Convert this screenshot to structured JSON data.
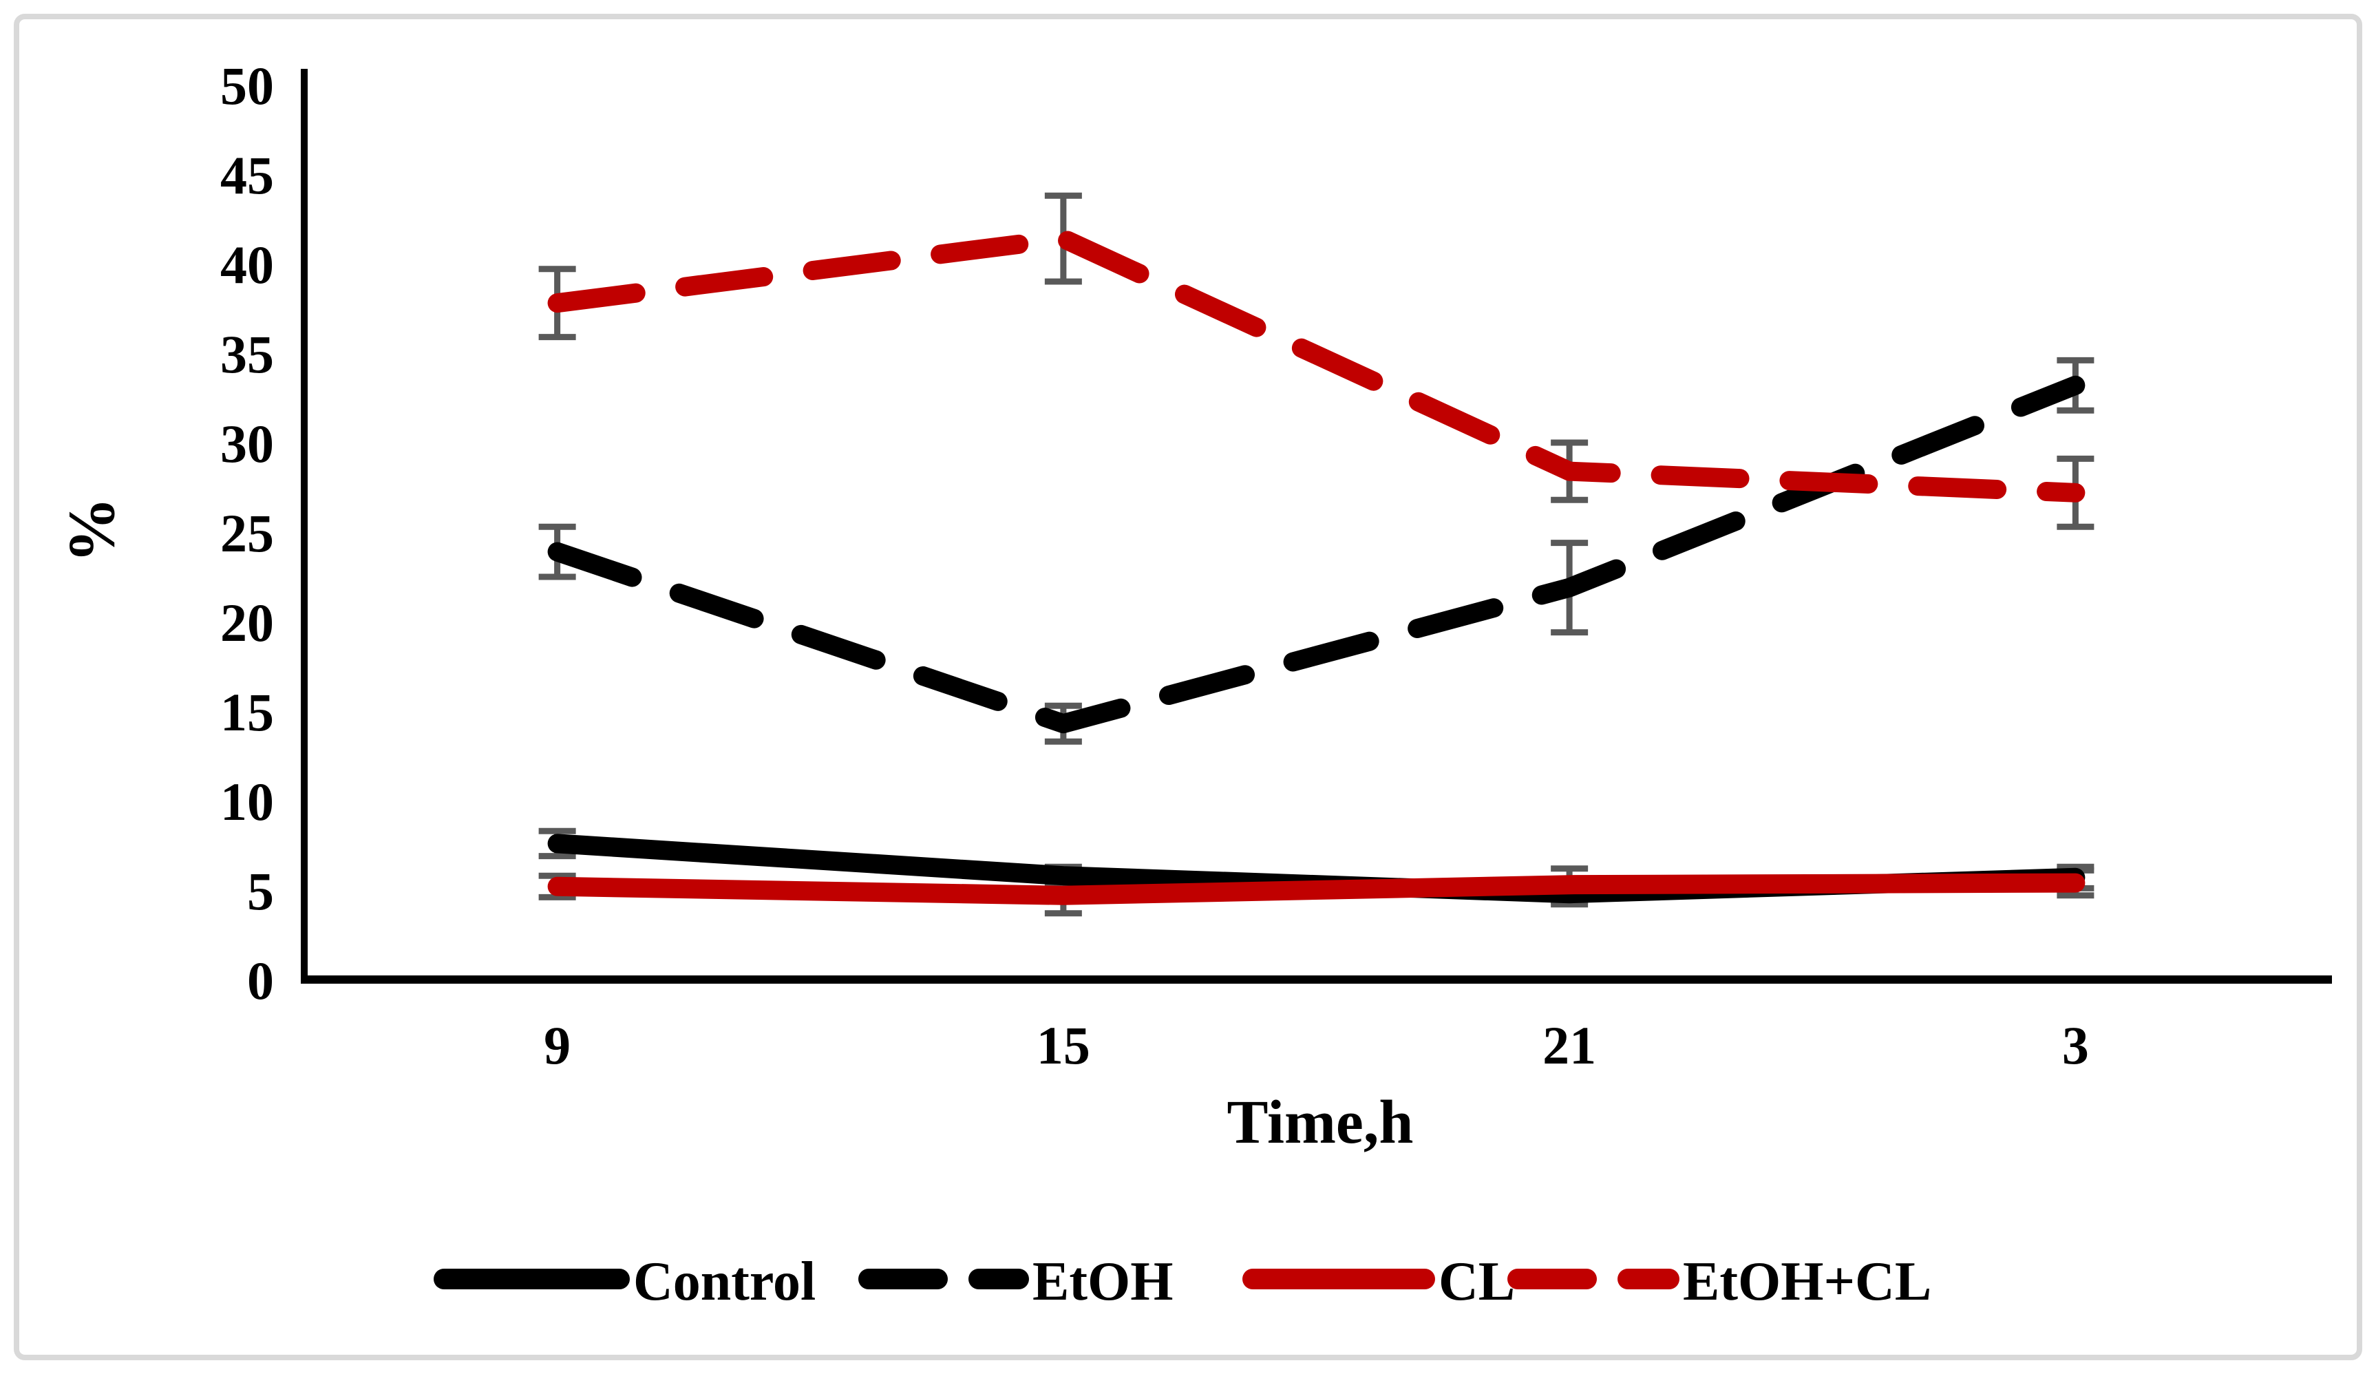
{
  "figure": {
    "background": "#ffffff",
    "border_color": "#d9d9d9"
  },
  "chart_data": {
    "type": "line",
    "title": "",
    "xlabel": "Time,h",
    "ylabel": "%",
    "categories": [
      "9",
      "15",
      "21",
      "3"
    ],
    "y_ticks": [
      0,
      5,
      10,
      15,
      20,
      25,
      30,
      35,
      40,
      45,
      50
    ],
    "ylim": [
      0,
      50
    ],
    "grid": false,
    "legend_position": "bottom",
    "error_bar_color": "#595959",
    "axis_color": "#000000",
    "series": [
      {
        "name": "Control",
        "color": "#000000",
        "style": "solid",
        "values": [
          7.6,
          5.8,
          4.8,
          5.7
        ],
        "errors": [
          0.7,
          0.5,
          0.6,
          0.6
        ]
      },
      {
        "name": "EtOH",
        "color": "#000000",
        "style": "dashed",
        "values": [
          23.9,
          14.3,
          21.9,
          33.2
        ],
        "errors": [
          1.4,
          1.0,
          2.5,
          1.4
        ]
      },
      {
        "name": "CL",
        "color": "#c00000",
        "style": "solid",
        "values": [
          5.2,
          4.7,
          5.3,
          5.4
        ],
        "errors": [
          0.6,
          1.0,
          0.9,
          0.7
        ]
      },
      {
        "name": "EtOH+CL",
        "color": "#c00000",
        "style": "dashed",
        "values": [
          37.8,
          41.4,
          28.4,
          27.2
        ],
        "errors": [
          1.9,
          2.4,
          1.6,
          1.9
        ]
      }
    ]
  }
}
